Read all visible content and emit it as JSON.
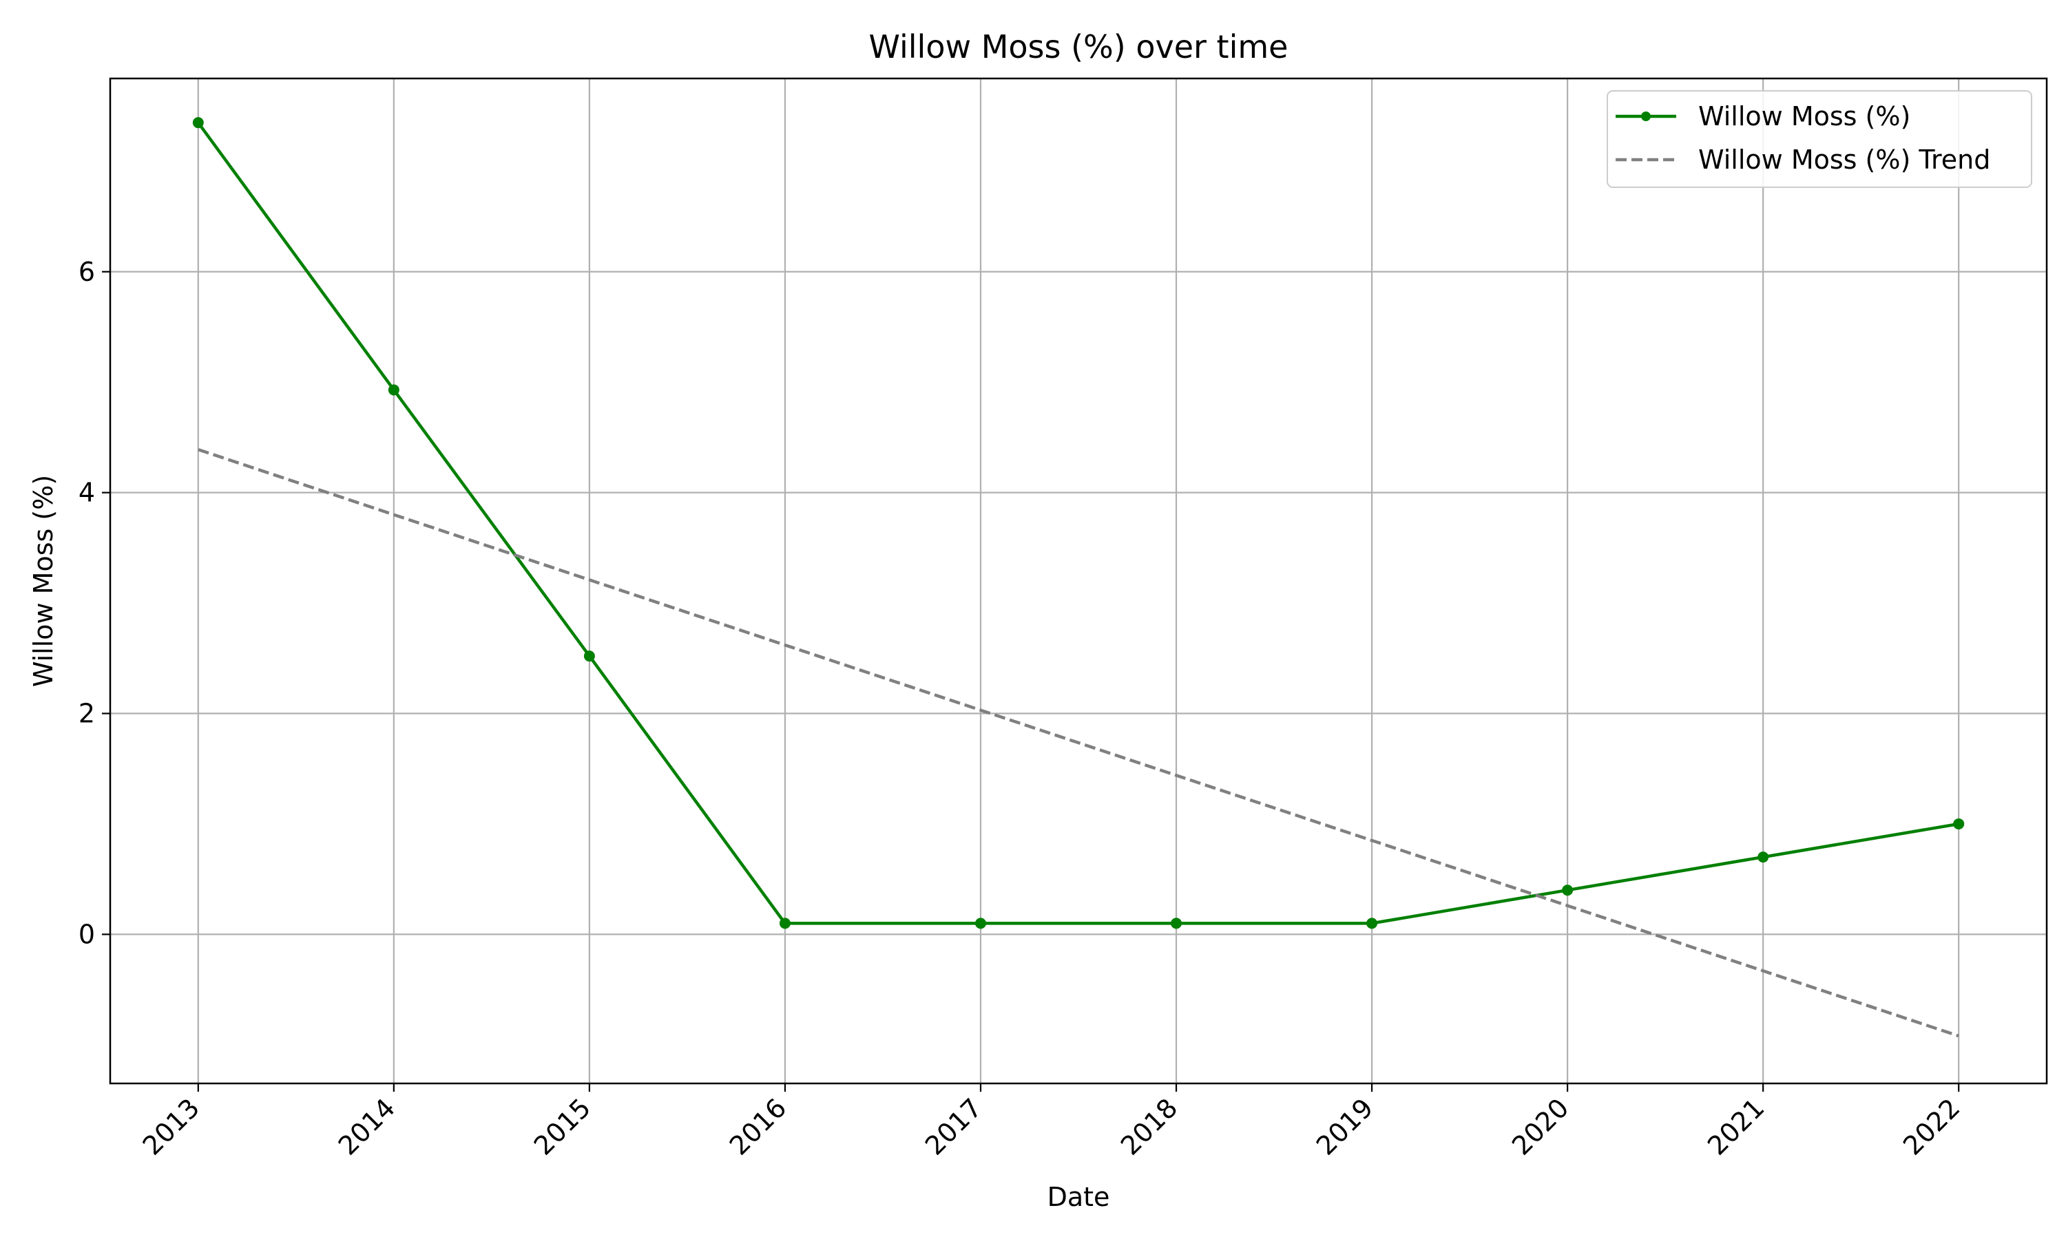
{
  "chart_data": {
    "type": "line",
    "title": "Willow Moss (%) over time",
    "xlabel": "Date",
    "ylabel": "Willow Moss (%)",
    "x": [
      "2013",
      "2014",
      "2015",
      "2016",
      "2017",
      "2018",
      "2019",
      "2020",
      "2021",
      "2022"
    ],
    "xlim": [
      2012.55,
      2022.45
    ],
    "ylim": [
      -1.35,
      7.75
    ],
    "yticks": [
      0,
      2,
      4,
      6
    ],
    "grid": true,
    "legend_position": "top-right",
    "series": [
      {
        "name": "Willow Moss (%)",
        "color": "#008000",
        "style": "solid",
        "marker": "circle",
        "values": [
          7.35,
          4.93,
          2.52,
          0.1,
          0.1,
          0.1,
          0.1,
          0.4,
          0.7,
          1.0
        ]
      },
      {
        "name": "Willow Moss (%) Trend",
        "color": "#808080",
        "style": "dashed",
        "marker": "none",
        "values": [
          4.39,
          3.8,
          3.21,
          2.62,
          2.03,
          1.44,
          0.85,
          0.26,
          -0.33,
          -0.92
        ]
      }
    ]
  }
}
